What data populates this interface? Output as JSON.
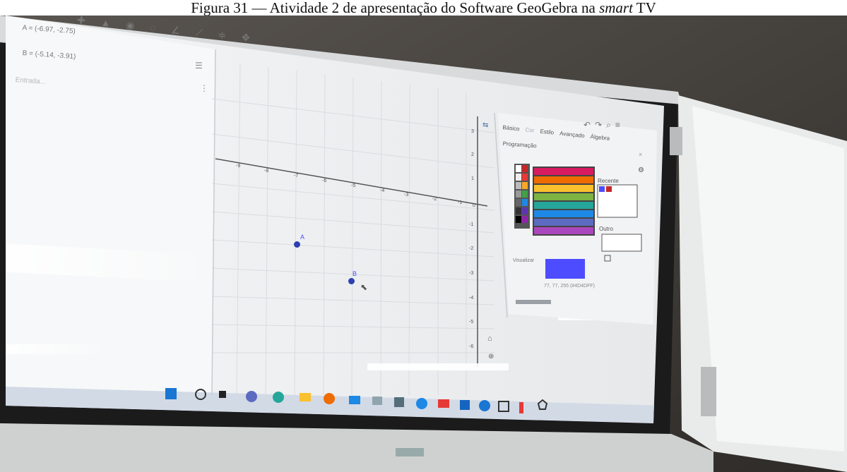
{
  "caption": {
    "prefix": "Figura 31 — Atividade 2 de apresentação do Software GeoGebra na ",
    "italic": "smart",
    "suffix": " TV"
  },
  "algebra": {
    "point_a": "A = (-6.97, -2.75)",
    "point_b": "B = (-5.14, -3.91)",
    "input_placeholder": "Entrada..."
  },
  "graphics": {
    "x_ticks": [
      "-9",
      "-8",
      "-7",
      "-6",
      "-5",
      "-4",
      "-3",
      "-2",
      "-1",
      "0"
    ],
    "y_ticks": [
      "3",
      "2",
      "1",
      "-1",
      "-2",
      "-3",
      "-4",
      "-5",
      "-6"
    ],
    "point_a_label": "A",
    "point_b_label": "B"
  },
  "style_panel": {
    "tabs": [
      "Básico",
      "Cor",
      "Estilo",
      "Avançado",
      "Álgebra"
    ],
    "tab_programming": "Programação",
    "recent_label": "Recente",
    "other_label": "Outro",
    "preview_label": "Visualizar",
    "color_value": "77, 77, 255 (#4D4DFF)",
    "preview_color": "#4d4dff"
  },
  "colors": {
    "point": "#2f3fb0",
    "accent": "#4d4dff"
  }
}
